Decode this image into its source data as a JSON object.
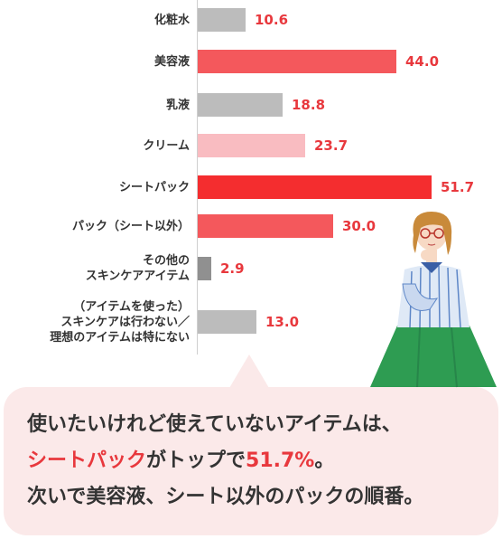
{
  "chart_data": {
    "type": "bar",
    "orientation": "horizontal",
    "categories": [
      "化粧水",
      "美容液",
      "乳液",
      "クリーム",
      "シートパック",
      "パック（シート以外）",
      "その他の\nスキンケアアイテム",
      "（アイテムを使った）\nスキンケアは行わない／\n理想のアイテムは特にない"
    ],
    "values": [
      10.6,
      44.0,
      18.8,
      23.7,
      51.7,
      30.0,
      2.9,
      13.0
    ],
    "value_labels": [
      "10.6",
      "44.0",
      "18.8",
      "23.7",
      "51.7",
      "30.0",
      "2.9",
      "13.0"
    ],
    "bar_colors": [
      "#bcbcbc",
      "#f4585c",
      "#bcbcbc",
      "#f9bcc1",
      "#f42d2f",
      "#f4585c",
      "#909090",
      "#bcbcbc"
    ],
    "xlim": [
      0,
      55
    ],
    "grid": false,
    "legend": "none"
  },
  "colors": {
    "highlight": "#e8383d",
    "bubble": "#fbe9e9",
    "axis": "#cfcfcf"
  },
  "callout": {
    "line1": "使いたいけれど使えていないアイテムは、",
    "line2_highlight": "シートパック",
    "line2_mid": "がトップで",
    "line2_pct": "51.7%",
    "line2_end": "。",
    "line3": "次いで美容液、シート以外のパックの順番。"
  },
  "illustration": {
    "subject": "woman-with-glasses-thinking"
  }
}
